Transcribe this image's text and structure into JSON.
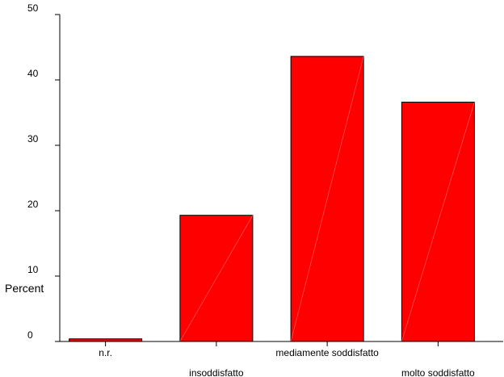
{
  "chart_data": {
    "type": "bar",
    "title": "",
    "xlabel": "",
    "ylabel": "Percent",
    "ylim": [
      0,
      50
    ],
    "yticks": [
      0,
      10,
      20,
      30,
      40,
      50
    ],
    "grid": false,
    "categories": [
      "n.r.",
      "insoddisfatto",
      "mediamente soddisfatto",
      "molto soddisfatto"
    ],
    "category_label_rows": [
      0,
      1,
      0,
      1
    ],
    "values": [
      0.4,
      19.3,
      43.6,
      36.6
    ],
    "bar_color": "#ff0000",
    "bar_edge_color": "#000000"
  }
}
